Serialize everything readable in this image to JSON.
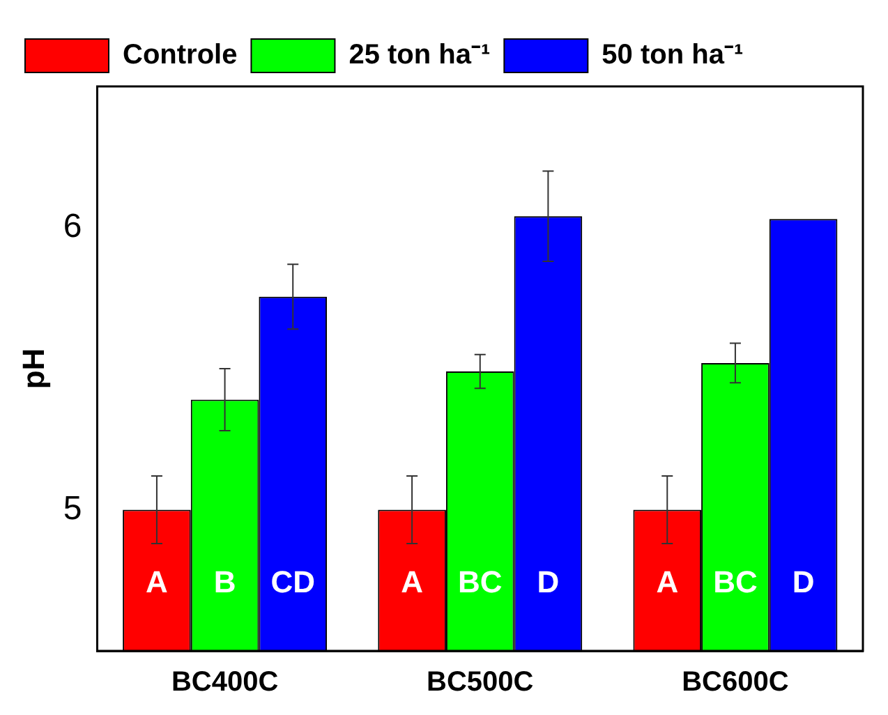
{
  "chart_data": {
    "type": "bar",
    "ylabel": "pH",
    "categories": [
      "BC400C",
      "BC500C",
      "BC600C"
    ],
    "series": [
      {
        "name": "Controle",
        "color": "#ff0000",
        "values": [
          5.0,
          5.0,
          5.0
        ],
        "errors": [
          0.12,
          0.12,
          0.12
        ],
        "value_labels": [
          "A",
          "A",
          "A"
        ]
      },
      {
        "name": "25 ton ha⁻¹",
        "color": "#00ff00",
        "values": [
          5.39,
          5.49,
          5.52
        ],
        "errors": [
          0.11,
          0.06,
          0.07
        ],
        "value_labels": [
          "B",
          "BC",
          "BC"
        ]
      },
      {
        "name": "50 ton ha⁻¹",
        "color": "#0000ff",
        "values": [
          5.755,
          6.04,
          6.03
        ],
        "errors": [
          0.115,
          0.16,
          null
        ],
        "value_labels": [
          "CD",
          "D",
          "D"
        ]
      }
    ],
    "ylim": [
      4.5,
      6.5
    ],
    "yticks": [
      5,
      6
    ],
    "grid": false,
    "legend": "top left"
  }
}
